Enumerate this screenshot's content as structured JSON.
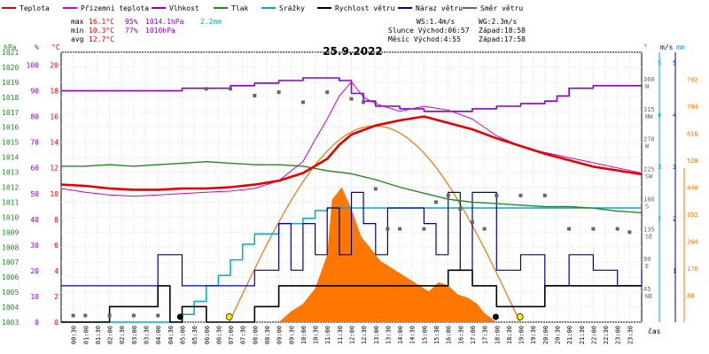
{
  "chart_data": {
    "type": "line",
    "title": "25.9.2022",
    "legend": [
      {
        "label": "Teplota",
        "color": "#e60000"
      },
      {
        "label": "Přízemní teplota",
        "color": "#cc00cc"
      },
      {
        "label": "Vlhkost",
        "color": "#8800cc"
      },
      {
        "label": "Tlak",
        "color": "#228822"
      },
      {
        "label": "Srážky",
        "color": "#00aacc"
      },
      {
        "label": "Rychlost větru",
        "color": "#000000"
      },
      {
        "label": "Náraz větru",
        "color": "#000099"
      },
      {
        "label": "Směr větru",
        "color": "#666666"
      }
    ],
    "stats": {
      "max_label": "max",
      "max_temp": "16.1°C",
      "max_hum": "95%",
      "max_press": "1014.1hPa",
      "max_rain": "2.2mm",
      "min_label": "min",
      "min_temp": "10.3°C",
      "min_hum": "77%",
      "min_press": "1010hPa",
      "avg_label": "avg",
      "avg_temp": "12.7°C",
      "ws": "WS:1.4m/s",
      "wg": "WG:2.3m/s",
      "sun": "Slunce Východ:06:57",
      "sun_set": "Západ:18:58",
      "moon": "Měsíc  Východ:4:55",
      "moon_set": "Západ:17:58"
    },
    "axis_units": {
      "hpa": "hPa",
      "pct": "%",
      "degc": "°C",
      "deg": "°",
      "ms": "m/s",
      "mm": "mm",
      "cas": "čas"
    },
    "hpa_ticks": [
      1003,
      1004,
      1005,
      1006,
      1007,
      1008,
      1009,
      1010,
      1011,
      1012,
      1013,
      1014,
      1015,
      1016,
      1017,
      1018,
      1019,
      1020,
      1021
    ],
    "pct_ticks": [
      0,
      10,
      20,
      30,
      40,
      50,
      60,
      70,
      80,
      90,
      100
    ],
    "degc_ticks": [
      0,
      2,
      4,
      6,
      8,
      10,
      12,
      14,
      16,
      18,
      20
    ],
    "deg_ticks": [
      {
        "v": "360",
        "d": "N"
      },
      {
        "v": "315",
        "d": "NW"
      },
      {
        "v": "270",
        "d": "W"
      },
      {
        "v": "225",
        "d": "SW"
      },
      {
        "v": "180",
        "d": "S"
      },
      {
        "v": "135",
        "d": "SE"
      },
      {
        "v": "90",
        "d": "E"
      },
      {
        "v": "45",
        "d": "NE"
      }
    ],
    "ms_ticks": [
      1,
      2,
      3,
      4,
      5
    ],
    "mm_ticks": [
      2,
      3,
      4,
      5
    ],
    "solar_ticks": [
      88,
      176,
      264,
      352,
      440,
      528,
      616,
      704,
      792
    ],
    "time_ticks": [
      "00:30",
      "01:00",
      "01:30",
      "02:00",
      "02:30",
      "03:00",
      "03:30",
      "04:00",
      "04:30",
      "05:00",
      "05:30",
      "06:00",
      "06:30",
      "07:00",
      "07:30",
      "08:00",
      "08:30",
      "09:00",
      "09:30",
      "10:00",
      "10:30",
      "11:00",
      "11:30",
      "12:00",
      "12:30",
      "13:00",
      "13:30",
      "14:00",
      "14:30",
      "15:00",
      "15:30",
      "16:00",
      "16:30",
      "17:00",
      "17:30",
      "18:00",
      "18:30",
      "19:00",
      "19:30",
      "20:00",
      "20:30",
      "21:00",
      "21:30",
      "22:00",
      "22:30",
      "23:00",
      "23:30"
    ],
    "xlim_hours": [
      0,
      24
    ],
    "temperature": {
      "x": [
        0,
        1,
        2,
        3,
        4,
        5,
        6,
        7,
        8,
        9,
        10,
        11,
        11.5,
        12,
        13,
        14,
        15,
        16,
        17,
        18,
        19,
        20,
        21,
        22,
        23,
        24
      ],
      "y": [
        10.7,
        10.6,
        10.4,
        10.3,
        10.3,
        10.4,
        10.4,
        10.5,
        10.7,
        11.0,
        11.6,
        12.7,
        13.8,
        14.6,
        15.3,
        15.7,
        16.0,
        15.5,
        15.0,
        14.3,
        13.7,
        13.1,
        12.6,
        12.1,
        11.8,
        11.5
      ]
    },
    "ground_temperature": {
      "x": [
        0,
        1,
        2,
        3,
        4,
        5,
        6,
        7,
        8,
        9,
        10,
        10.5,
        11,
        11.5,
        12,
        12.5,
        13,
        14,
        15,
        16,
        17,
        18,
        19,
        20,
        21,
        22,
        23,
        24
      ],
      "y": [
        10.4,
        10.1,
        9.9,
        9.8,
        9.9,
        10.0,
        10.1,
        10.2,
        10.4,
        11.0,
        12.5,
        14.2,
        15.8,
        17.6,
        18.7,
        17.5,
        17.0,
        16.4,
        16.8,
        16.5,
        15.8,
        14.5,
        13.7,
        13.2,
        12.8,
        12.4,
        12.0,
        11.6
      ]
    },
    "humidity": {
      "x": [
        0,
        2,
        4,
        5,
        6,
        7,
        8,
        9,
        10,
        11,
        11.5,
        12,
        12.5,
        13,
        14,
        15,
        16,
        17,
        18,
        19,
        20,
        20.5,
        21,
        22,
        23,
        24
      ],
      "y": [
        90,
        90,
        90,
        91,
        91,
        92,
        93,
        94,
        95,
        95,
        94,
        89,
        86,
        84,
        83,
        82,
        82,
        83,
        84,
        85,
        86,
        88,
        91,
        92,
        92,
        92
      ]
    },
    "pressure": {
      "x": [
        0,
        1,
        2,
        3,
        4,
        5,
        6,
        7,
        8,
        9,
        10,
        11,
        12,
        13,
        14,
        15,
        16,
        17,
        18,
        19,
        20,
        21,
        22,
        23,
        24
      ],
      "y": [
        1013.4,
        1013.4,
        1013.5,
        1013.4,
        1013.5,
        1013.6,
        1013.7,
        1013.6,
        1013.5,
        1013.5,
        1013.4,
        1013.1,
        1012.9,
        1012.5,
        1012.0,
        1011.6,
        1011.2,
        1011.0,
        1010.9,
        1010.8,
        1010.7,
        1010.7,
        1010.6,
        1010.4,
        1010.3
      ]
    },
    "rain_mm": {
      "x": [
        0,
        4,
        5,
        5.5,
        6,
        6.5,
        7,
        7.5,
        8,
        9,
        10,
        10.5,
        11,
        24
      ],
      "y": [
        0,
        0,
        0.15,
        0.4,
        0.7,
        0.9,
        1.2,
        1.5,
        1.7,
        1.9,
        2.0,
        2.15,
        2.2,
        2.2
      ]
    },
    "wind_speed": {
      "x": [
        0,
        2,
        3,
        4,
        4.5,
        5,
        6,
        7,
        8,
        9,
        10,
        11,
        12,
        13,
        14,
        15,
        16,
        17,
        18,
        19,
        20,
        21,
        22,
        23,
        24
      ],
      "y": [
        0.0,
        0.3,
        0.3,
        0.7,
        0.0,
        0.3,
        0.0,
        0.0,
        0.3,
        0.7,
        0.7,
        0.7,
        0.7,
        0.7,
        0.7,
        0.7,
        1.0,
        0.7,
        0.3,
        0.3,
        0.7,
        0.7,
        0.7,
        0.7,
        0.7
      ]
    },
    "wind_gust": {
      "x": [
        0,
        2,
        4,
        5,
        7,
        8,
        9,
        9.5,
        10,
        10.5,
        11,
        11.5,
        12,
        12.5,
        13,
        13.5,
        14,
        15,
        15.5,
        16,
        16.5,
        17,
        18,
        19,
        20,
        21,
        22,
        23,
        24
      ],
      "y": [
        0.7,
        0.7,
        1.3,
        0.7,
        0.7,
        1.0,
        1.9,
        1.0,
        1.9,
        1.3,
        2.2,
        1.3,
        2.5,
        1.9,
        1.3,
        2.2,
        2.2,
        1.9,
        1.3,
        2.5,
        1.0,
        2.5,
        1.0,
        1.3,
        0.7,
        1.3,
        1.0,
        0.7,
        1.0
      ]
    },
    "wind_direction": {
      "x": [
        0.5,
        1,
        2,
        3,
        4,
        6,
        7,
        8,
        9,
        10,
        11,
        12,
        12.5,
        13,
        13.5,
        14,
        15,
        15.5,
        16,
        16.5,
        17,
        17.5,
        18,
        19,
        20,
        21,
        22,
        23,
        23.5
      ],
      "y": [
        10,
        10,
        10,
        10,
        10,
        350,
        350,
        340,
        345,
        330,
        345,
        335,
        330,
        200,
        140,
        140,
        140,
        180,
        190,
        170,
        150,
        140,
        190,
        190,
        190,
        140,
        140,
        140,
        135
      ]
    },
    "solar_wm2": {
      "x": [
        0,
        9,
        9.5,
        10,
        10.5,
        11,
        11.2,
        11.6,
        12,
        12.4,
        12.8,
        13.2,
        13.6,
        14,
        14.4,
        14.8,
        15.2,
        15.6,
        16,
        16.4,
        16.8,
        17.2,
        17.5,
        18,
        24
      ],
      "y": [
        0,
        0,
        35,
        60,
        110,
        220,
        400,
        440,
        370,
        280,
        240,
        200,
        180,
        160,
        140,
        120,
        100,
        130,
        120,
        90,
        80,
        60,
        30,
        0,
        0
      ]
    },
    "solar_theoretical_max": 640,
    "sunrise_hour": 6.95,
    "sunset_hour": 18.97,
    "moonrise_hour": 4.92,
    "moonset_hour": 17.97
  }
}
